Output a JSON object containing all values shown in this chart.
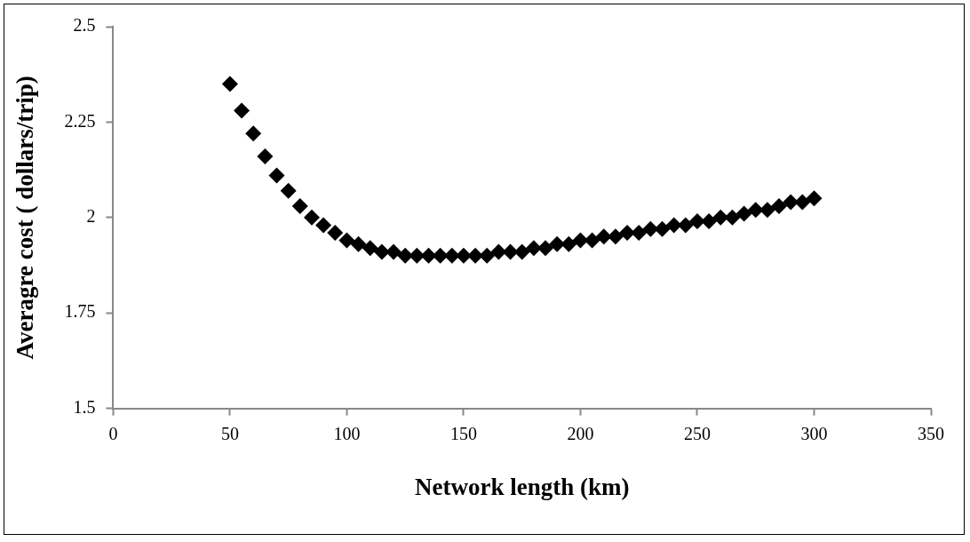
{
  "chart_data": {
    "type": "scatter",
    "xlabel": "Network length (km)",
    "ylabel": "Averagre cost ( dollars/trip)",
    "x": [
      50,
      55,
      60,
      65,
      70,
      75,
      80,
      85,
      90,
      95,
      100,
      105,
      110,
      115,
      120,
      125,
      130,
      135,
      140,
      145,
      150,
      155,
      160,
      165,
      170,
      175,
      180,
      185,
      190,
      195,
      200,
      205,
      210,
      215,
      220,
      225,
      230,
      235,
      240,
      245,
      250,
      255,
      260,
      265,
      270,
      275,
      280,
      285,
      290,
      295,
      300
    ],
    "series": [
      {
        "color": "#000000",
        "values": [
          2.35,
          2.28,
          2.22,
          2.16,
          2.11,
          2.07,
          2.03,
          2.0,
          1.98,
          1.96,
          1.94,
          1.93,
          1.92,
          1.91,
          1.91,
          1.9,
          1.9,
          1.9,
          1.9,
          1.9,
          1.9,
          1.9,
          1.9,
          1.91,
          1.91,
          1.91,
          1.92,
          1.92,
          1.93,
          1.93,
          1.94,
          1.94,
          1.95,
          1.95,
          1.96,
          1.96,
          1.97,
          1.97,
          1.98,
          1.98,
          1.99,
          1.99,
          2.0,
          2.0,
          2.01,
          2.02,
          2.02,
          2.03,
          2.04,
          2.04,
          2.05
        ]
      }
    ],
    "xlim": [
      0,
      350
    ],
    "xticks": [
      0,
      50,
      100,
      150,
      200,
      250,
      300,
      350
    ],
    "ylim": [
      1.5,
      2.5
    ],
    "yticks": [
      1.5,
      1.75,
      2,
      2.25,
      2.5
    ],
    "grid": false,
    "legend": false,
    "marker": "diamond"
  }
}
